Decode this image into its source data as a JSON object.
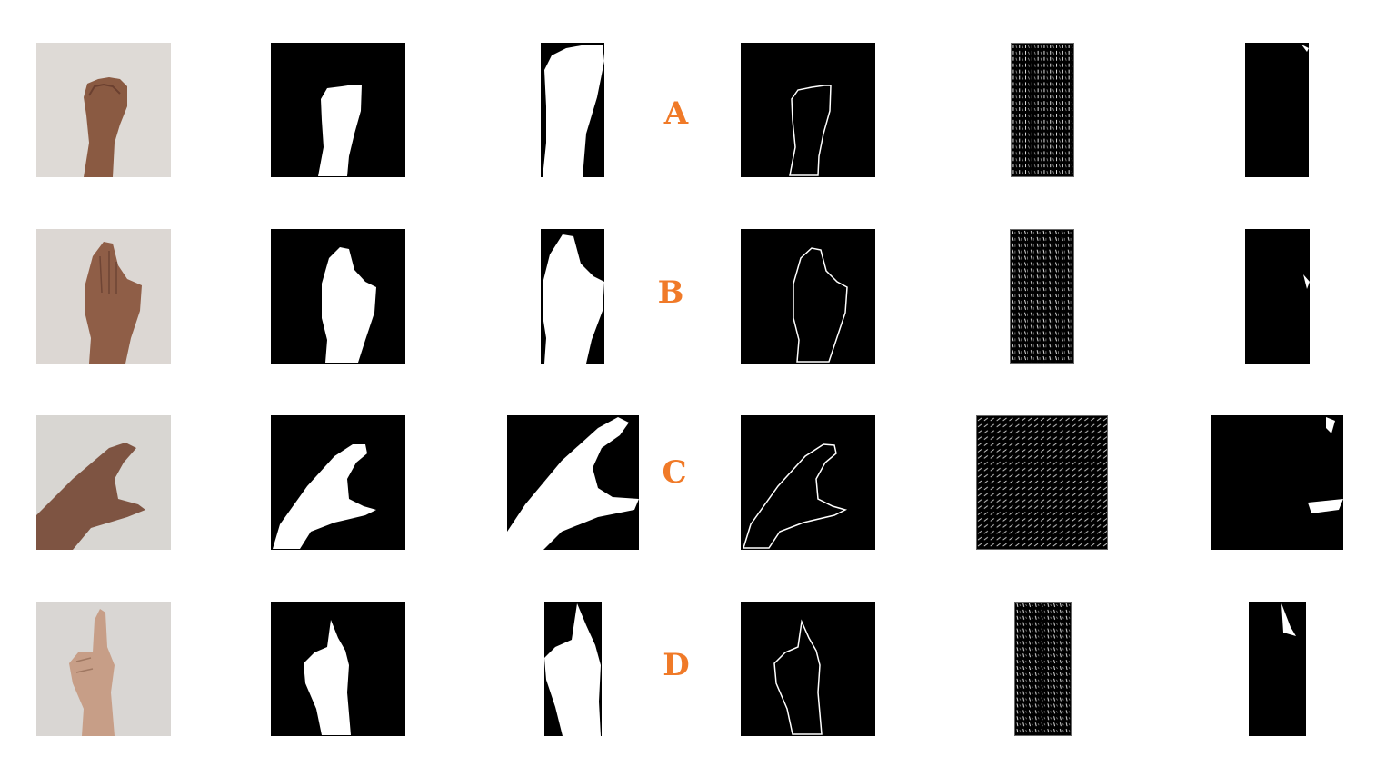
{
  "colors": {
    "letter": "#f07a28",
    "background": "#ffffff",
    "mask": "#000000",
    "foreground": "#ffffff"
  },
  "rows": [
    {
      "letter": "A",
      "gesture": "fist"
    },
    {
      "letter": "B",
      "gesture": "open-palm"
    },
    {
      "letter": "C",
      "gesture": "c-curve"
    },
    {
      "letter": "D",
      "gesture": "index-finger"
    }
  ]
}
